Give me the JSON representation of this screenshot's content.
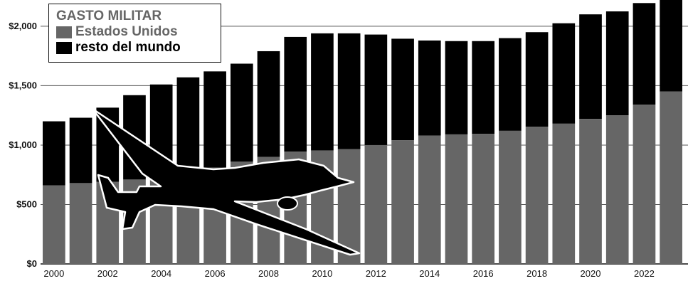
{
  "chart_data": {
    "type": "bar",
    "stacked": true,
    "title": "GASTO MILITAR",
    "categories": [
      2000,
      2001,
      2002,
      2003,
      2004,
      2005,
      2006,
      2007,
      2008,
      2009,
      2010,
      2011,
      2012,
      2013,
      2014,
      2015,
      2016,
      2017,
      2018,
      2019,
      2020,
      2021,
      2022,
      2023
    ],
    "x_tick_labels": [
      "2000",
      "2002",
      "2004",
      "2006",
      "2008",
      "2010",
      "2012",
      "2014",
      "2016",
      "2018",
      "2020",
      "2022"
    ],
    "y_tick_labels": [
      "$0",
      "$500",
      "$1,000",
      "$1,500",
      "$2,000"
    ],
    "y_ticks": [
      0,
      500,
      1000,
      1500,
      2000
    ],
    "ylim": [
      0,
      2230
    ],
    "grid": true,
    "legend_placement": "top-left",
    "series": [
      {
        "name": "Estados Unidos",
        "color": "#666666",
        "values": [
          660,
          680,
          690,
          710,
          740,
          770,
          810,
          860,
          900,
          945,
          955,
          965,
          1000,
          1040,
          1080,
          1090,
          1095,
          1120,
          1155,
          1180,
          1220,
          1250,
          1340,
          1450
        ]
      },
      {
        "name": "resto del mundo",
        "color": "#000000",
        "values": [
          540,
          550,
          625,
          710,
          770,
          800,
          810,
          825,
          890,
          965,
          985,
          975,
          930,
          855,
          800,
          785,
          780,
          780,
          795,
          845,
          880,
          875,
          855,
          800
        ]
      }
    ],
    "decoration": "drone-silhouette"
  }
}
